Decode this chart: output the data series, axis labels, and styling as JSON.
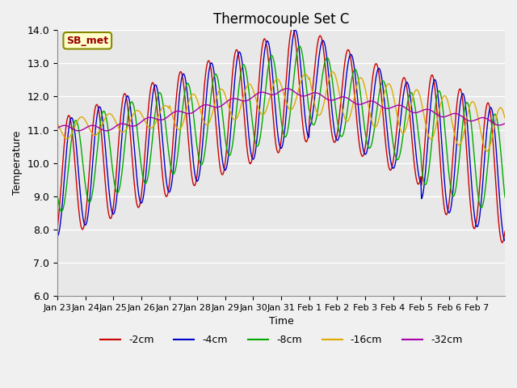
{
  "title": "Thermocouple Set C",
  "xlabel": "Time",
  "ylabel": "Temperature",
  "ylim": [
    6.0,
    14.0
  ],
  "yticks": [
    6.0,
    7.0,
    8.0,
    9.0,
    10.0,
    11.0,
    12.0,
    13.0,
    14.0
  ],
  "xtick_labels": [
    "Jan 23",
    "Jan 24",
    "Jan 25",
    "Jan 26",
    "Jan 27",
    "Jan 28",
    "Jan 29",
    "Jan 30",
    "Jan 31",
    "Feb 1",
    "Feb 2",
    "Feb 3",
    "Feb 4",
    "Feb 5",
    "Feb 6",
    "Feb 7"
  ],
  "series_colors": [
    "#cc0000",
    "#0000cc",
    "#00aa00",
    "#ddaa00",
    "#aa00aa"
  ],
  "series_labels": [
    "-2cm",
    "-4cm",
    "-8cm",
    "-16cm",
    "-32cm"
  ],
  "legend_label": "SB_met",
  "background_color": "#e8e8e8",
  "grid_color": "#ffffff"
}
